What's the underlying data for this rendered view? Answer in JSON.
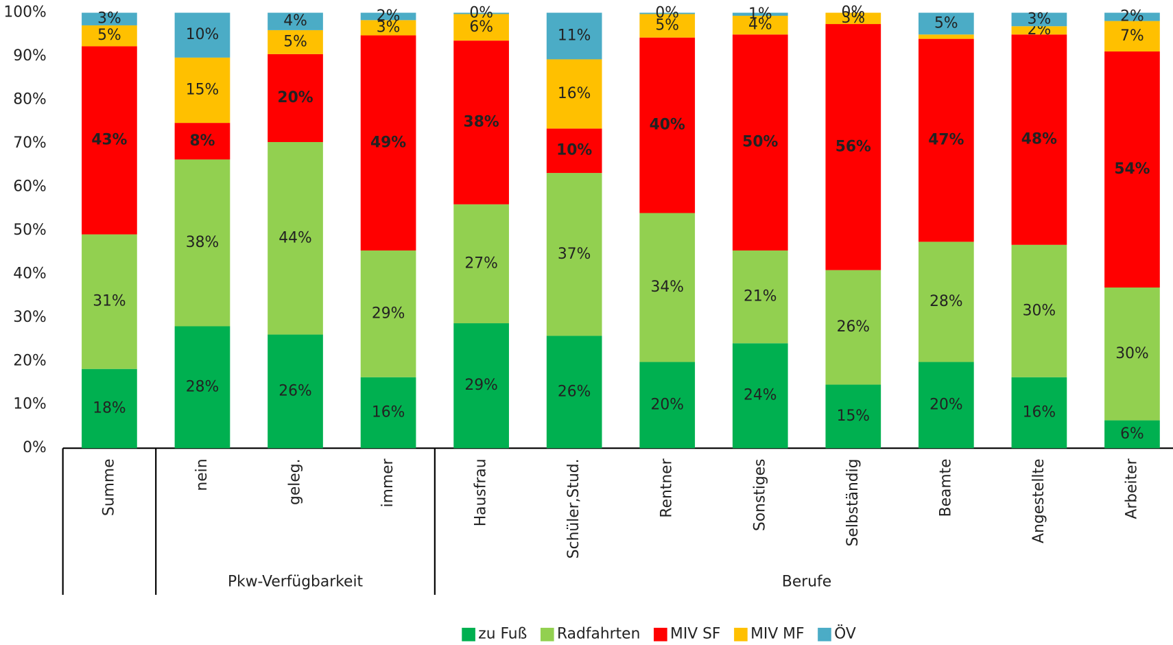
{
  "chart_data": {
    "type": "stacked_bar",
    "categories": [
      "Summe",
      "nein",
      "geleg.",
      "immer",
      "Hausfrau",
      "Schüler,Stud.",
      "Rentner",
      "Sonstiges",
      "Selbständig",
      "Beamte",
      "Angestellte",
      "Arbeiter"
    ],
    "group_sizes": [
      1,
      3,
      8
    ],
    "group_labels": [
      null,
      "Pkw-Verfügbarkeit",
      "Berufe"
    ],
    "ylim": [
      0,
      100
    ],
    "yticks": [
      {
        "value": 0,
        "label": "0%"
      },
      {
        "value": 10,
        "label": "10%"
      },
      {
        "value": 20,
        "label": "20%"
      },
      {
        "value": 30,
        "label": "30%"
      },
      {
        "value": 40,
        "label": "40%"
      },
      {
        "value": 50,
        "label": "50%"
      },
      {
        "value": 60,
        "label": "60%"
      },
      {
        "value": 70,
        "label": "70%"
      },
      {
        "value": 80,
        "label": "80%"
      },
      {
        "value": 90,
        "label": "90%"
      },
      {
        "value": 100,
        "label": "100%"
      }
    ],
    "series": [
      {
        "name": "zu Fuß",
        "color": "#00b050",
        "values": [
          18.2,
          28.0,
          26.1,
          16.3,
          28.7,
          25.8,
          19.8,
          24.1,
          14.6,
          19.8,
          16.3,
          6.4
        ],
        "value_labels": [
          "18%",
          "28%",
          "26%",
          "16%",
          "29%",
          "26%",
          "20%",
          "24%",
          "15%",
          "20%",
          "16%",
          "6%"
        ]
      },
      {
        "name": "Radfahrten",
        "color": "#92d050",
        "values": [
          30.9,
          38.3,
          44.2,
          29.1,
          27.3,
          37.4,
          34.2,
          21.3,
          26.3,
          27.6,
          30.4,
          30.5
        ],
        "value_labels": [
          "31%",
          "38%",
          "44%",
          "29%",
          "27%",
          "37%",
          "34%",
          "21%",
          "26%",
          "28%",
          "30%",
          "30%"
        ]
      },
      {
        "name": "MIV SF",
        "color": "#ff0000",
        "values": [
          43.2,
          8.4,
          20.2,
          49.4,
          37.6,
          10.2,
          40.3,
          49.6,
          56.5,
          46.6,
          48.3,
          54.2
        ],
        "value_labels": [
          "43%",
          "8%",
          "20%",
          "49%",
          "38%",
          "10%",
          "40%",
          "50%",
          "56%",
          "47%",
          "48%",
          "54%"
        ]
      },
      {
        "name": "MIV MF",
        "color": "#ffc000",
        "values": [
          4.8,
          15.0,
          5.5,
          3.5,
          6.1,
          15.9,
          5.4,
          4.3,
          2.6,
          1.0,
          1.9,
          7.0
        ],
        "value_labels": [
          "5%",
          "15%",
          "5%",
          "3%",
          "6%",
          "16%",
          "5%",
          "4%",
          "3%",
          null,
          "2%",
          "7%"
        ]
      },
      {
        "name": "ÖV",
        "color": "#4bacc6",
        "values": [
          2.9,
          10.3,
          4.0,
          1.7,
          0.3,
          10.7,
          0.3,
          0.7,
          0.0,
          5.0,
          3.1,
          1.9
        ],
        "value_labels": [
          "3%",
          "10%",
          "4%",
          "2%",
          "0%",
          "11%",
          "0%",
          "1%",
          "0%",
          "5%",
          "3%",
          "2%"
        ]
      }
    ]
  }
}
